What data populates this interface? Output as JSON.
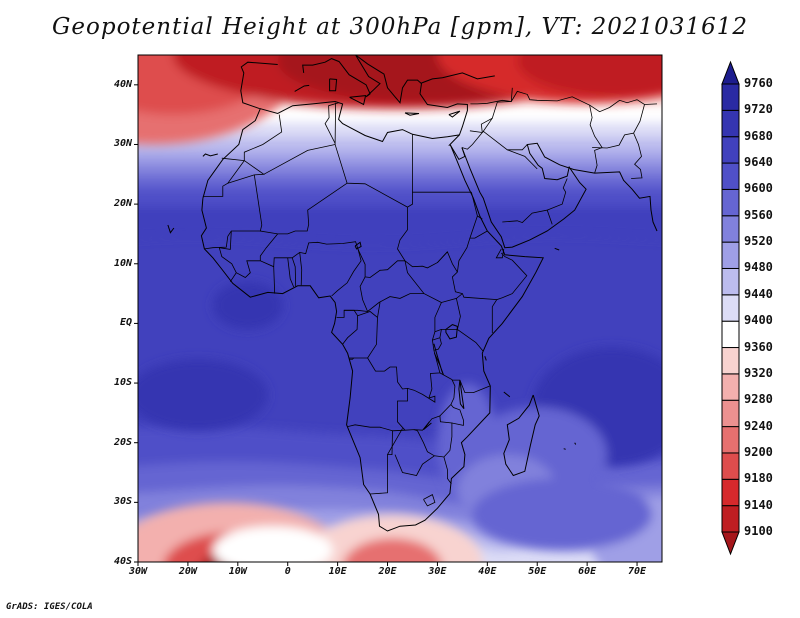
{
  "title": "Geopotential Height at 300hPa [gpm], VT: 2021031612",
  "credit": "GrADS: IGES/COLA",
  "y_axis": {
    "labels": [
      "40N",
      "30N",
      "20N",
      "10N",
      "EQ",
      "10S",
      "20S",
      "30S",
      "40S"
    ],
    "values": [
      40,
      30,
      20,
      10,
      0,
      -10,
      -20,
      -30,
      -40
    ]
  },
  "x_axis": {
    "labels": [
      "30W",
      "20W",
      "10W",
      "0",
      "10E",
      "20E",
      "30E",
      "40E",
      "50E",
      "60E",
      "70E"
    ],
    "values": [
      -30,
      -20,
      -10,
      0,
      10,
      20,
      30,
      40,
      50,
      60,
      70
    ]
  },
  "map_extent": {
    "lon": [
      -30,
      75
    ],
    "lat": [
      -40,
      45
    ]
  },
  "colorbar": {
    "levels": [
      9100,
      9140,
      9180,
      9200,
      9240,
      9280,
      9320,
      9360,
      9400,
      9440,
      9480,
      9520,
      9560,
      9600,
      9640,
      9680,
      9720,
      9760
    ],
    "colors": [
      "#a5161b",
      "#bf1e22",
      "#d6292c",
      "#de4d4d",
      "#e6706f",
      "#ec9190",
      "#f3b0ae",
      "#f8d3d0",
      "#ffffff",
      "#dcdcf6",
      "#bcbcee",
      "#9f9fe6",
      "#8181dc",
      "#6565d2",
      "#5050c8",
      "#4141bd",
      "#3535b1",
      "#2a2aa3",
      "#1d1d8e"
    ]
  },
  "layers": {
    "coastline": "Africa, Europe, Middle East, Madagascar",
    "borders": "national boundaries"
  }
}
